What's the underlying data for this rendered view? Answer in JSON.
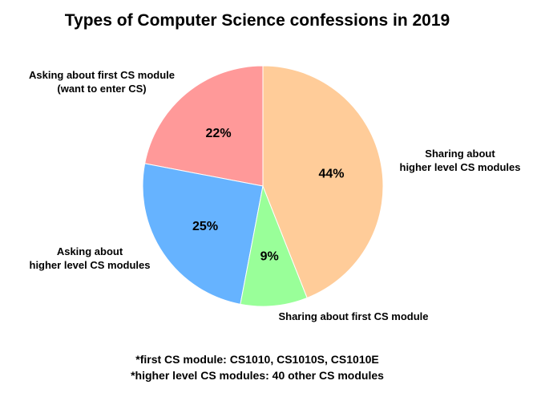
{
  "chart_data": {
    "type": "pie",
    "title": "Types of Computer Science confessions in 2019",
    "start_angle_deg": 90,
    "direction": "counterclockwise",
    "slices": [
      {
        "label": [
          "Asking about first CS module",
          "(want to enter CS)"
        ],
        "value": 22,
        "pct_label": "22%",
        "color": "#ff9999"
      },
      {
        "label": [
          "Asking about",
          "higher level CS modules"
        ],
        "value": 25,
        "pct_label": "25%",
        "color": "#66b3ff"
      },
      {
        "label": [
          "Sharing about first CS module"
        ],
        "value": 9,
        "pct_label": "9%",
        "color": "#99ff99"
      },
      {
        "label": [
          "Sharing about",
          "higher level CS modules"
        ],
        "value": 44,
        "pct_label": "44%",
        "color": "#ffcc99"
      }
    ]
  },
  "footnotes": [
    "*first CS module: CS1010, CS1010S, CS1010E",
    "*higher level CS modules: 40 other CS modules"
  ]
}
